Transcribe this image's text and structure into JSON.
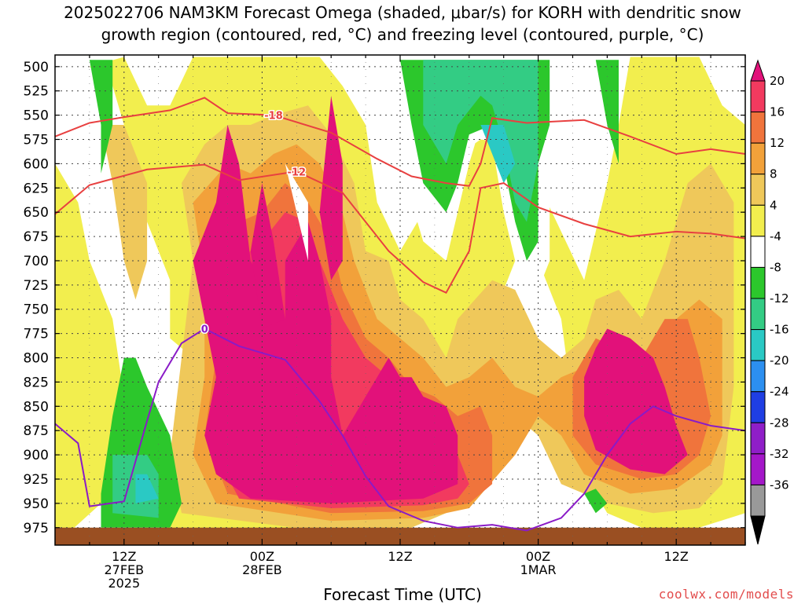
{
  "title": {
    "line1": "2025022706 NAM3KM Forecast Omega (shaded, μbar/s) for KORH with dendritic snow",
    "line2": "growth region (contoured, red, °C) and freezing level (contoured, purple, °C)"
  },
  "xlabel": "Forecast Time (UTC)",
  "credit": "coolwx.com/models",
  "chart_data": {
    "type": "heatmap",
    "title": "2025022706 NAM3KM Forecast Omega (shaded, μbar/s) for KORH with dendritic snow growth region (contoured, red, °C) and freezing level (contoured, purple, °C)",
    "xlabel": "Forecast Time (UTC)",
    "ylabel": "",
    "x_range_hours": [
      6,
      66
    ],
    "y_range_hpa": [
      488,
      993
    ],
    "y_axis": "pressure (hPa), inverted",
    "x_ticks": [
      {
        "hour": 12,
        "lines": [
          "12Z",
          "27FEB",
          "2025"
        ]
      },
      {
        "hour": 24,
        "lines": [
          "00Z",
          "28FEB"
        ]
      },
      {
        "hour": 36,
        "lines": [
          "12Z"
        ]
      },
      {
        "hour": 48,
        "lines": [
          "00Z",
          "1MAR"
        ]
      },
      {
        "hour": 60,
        "lines": [
          "12Z"
        ]
      }
    ],
    "y_ticks": [
      500,
      525,
      550,
      575,
      600,
      625,
      650,
      675,
      700,
      725,
      750,
      775,
      800,
      825,
      850,
      875,
      900,
      925,
      950,
      975
    ],
    "grid": true,
    "colorbar": {
      "labels": [
        "20",
        "16",
        "12",
        "8",
        "4",
        "-4",
        "-8",
        "-12",
        "-16",
        "-20",
        "-24",
        "-28",
        "-32",
        "-36"
      ],
      "colors": [
        "#f23a5f",
        "#f0743c",
        "#f2a13a",
        "#efc85a",
        "#f2ee4e",
        "#ffffff",
        "#2cc72c",
        "#33cc84",
        "#2ac9c4",
        "#2c8ff0",
        "#1f3ee3",
        "#8f1ec8",
        "#a417c9",
        "#999999"
      ],
      "top_color": "#e2117a",
      "bottom_color": "#000000"
    },
    "contours": [
      {
        "level": -18,
        "label": "-18",
        "color": "#e84040",
        "points": [
          [
            6,
            572
          ],
          [
            9,
            558
          ],
          [
            12,
            552
          ],
          [
            16,
            545
          ],
          [
            19,
            532
          ],
          [
            21,
            548
          ],
          [
            25,
            550
          ],
          [
            30,
            568
          ],
          [
            34,
            595
          ],
          [
            37,
            613
          ],
          [
            40,
            620
          ],
          [
            42,
            623
          ],
          [
            43,
            600
          ],
          [
            44,
            553
          ],
          [
            47,
            558
          ],
          [
            52,
            555
          ],
          [
            56,
            572
          ],
          [
            60,
            590
          ],
          [
            63,
            585
          ],
          [
            66,
            590
          ]
        ]
      },
      {
        "level": -12,
        "label": "-12",
        "color": "#e84040",
        "points": [
          [
            6,
            652
          ],
          [
            9,
            622
          ],
          [
            14,
            606
          ],
          [
            19,
            601
          ],
          [
            22,
            617
          ],
          [
            27,
            608
          ],
          [
            31,
            630
          ],
          [
            35,
            690
          ],
          [
            38,
            722
          ],
          [
            40,
            733
          ],
          [
            42,
            690
          ],
          [
            43,
            625
          ],
          [
            45,
            620
          ],
          [
            48,
            645
          ],
          [
            52,
            662
          ],
          [
            56,
            675
          ],
          [
            60,
            670
          ],
          [
            63,
            672
          ],
          [
            66,
            677
          ]
        ]
      },
      {
        "level": 0,
        "label": "0",
        "color": "#8a1bc7",
        "points": [
          [
            6,
            868
          ],
          [
            8,
            888
          ],
          [
            9,
            953
          ],
          [
            12,
            948
          ],
          [
            14,
            865
          ],
          [
            15,
            825
          ],
          [
            17,
            785
          ],
          [
            19,
            770
          ],
          [
            22,
            788
          ],
          [
            26,
            802
          ],
          [
            29,
            845
          ],
          [
            31,
            880
          ],
          [
            33,
            922
          ],
          [
            35,
            953
          ],
          [
            38,
            968
          ],
          [
            41,
            975
          ],
          [
            44,
            972
          ],
          [
            47,
            978
          ],
          [
            50,
            965
          ],
          [
            52,
            940
          ],
          [
            54,
            900
          ],
          [
            56,
            868
          ],
          [
            58,
            850
          ],
          [
            60,
            860
          ],
          [
            63,
            870
          ],
          [
            66,
            875
          ]
        ]
      }
    ],
    "regions": [
      {
        "name": "strong upward motion core",
        "value": ">20",
        "hours": [
          20,
          43
        ],
        "hpa": [
          600,
          970
        ]
      },
      {
        "name": "upward motion core",
        "value": ">20",
        "hours": [
          53,
          61
        ],
        "hpa": [
          770,
          925
        ]
      },
      {
        "name": "subsidence area",
        "value": "-12 to -16",
        "hours": [
          33,
          48
        ],
        "hpa": [
          500,
          715
        ]
      },
      {
        "name": "low-level subsidence",
        "value": "-12 to -16",
        "hours": [
          10,
          17
        ],
        "hpa": [
          850,
          975
        ]
      }
    ],
    "terrain_hpa": 975
  }
}
